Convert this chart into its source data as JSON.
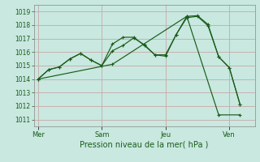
{
  "xlabel": "Pression niveau de la mer( hPa )",
  "ylim": [
    1010.5,
    1019.5
  ],
  "yticks": [
    1011,
    1012,
    1013,
    1014,
    1015,
    1016,
    1017,
    1018,
    1019
  ],
  "bg_color": "#c8e8e0",
  "grid_color": "#c8a8a8",
  "line_color": "#1a5c1a",
  "xtick_labels": [
    "Mer",
    "Sam",
    "Jeu",
    "Ven"
  ],
  "xtick_positions": [
    0,
    3,
    6,
    9
  ],
  "xlim": [
    -0.2,
    10.2
  ],
  "series1_x": [
    0,
    0.5,
    1.0,
    1.5,
    2.0,
    2.5,
    3.0,
    3.5,
    4.0,
    4.5,
    5.0,
    5.5,
    6.0,
    6.5,
    7.0,
    7.5,
    8.0,
    8.5,
    9.0,
    9.5
  ],
  "series1_y": [
    1014.0,
    1014.7,
    1014.9,
    1015.5,
    1015.9,
    1015.4,
    1015.0,
    1016.1,
    1016.5,
    1017.05,
    1016.55,
    1015.8,
    1015.8,
    1017.3,
    1018.55,
    1018.65,
    1017.95,
    1015.65,
    1014.85,
    1012.15
  ],
  "series2_x": [
    0,
    0.5,
    1.0,
    1.5,
    2.0,
    2.5,
    3.0,
    3.5,
    4.0,
    4.5,
    5.0,
    5.5,
    6.0,
    6.5,
    7.0,
    7.5,
    8.0,
    8.5,
    9.0,
    9.5
  ],
  "series2_y": [
    1014.0,
    1014.7,
    1014.9,
    1015.5,
    1015.9,
    1015.4,
    1015.0,
    1016.6,
    1017.1,
    1017.1,
    1016.5,
    1015.8,
    1015.7,
    1017.3,
    1018.65,
    1018.7,
    1018.05,
    1015.65,
    1014.85,
    1012.15
  ],
  "series3_x": [
    0,
    3.5,
    7.0,
    8.5,
    9.5
  ],
  "series3_y": [
    1014.0,
    1015.1,
    1018.65,
    1011.35,
    1011.35
  ]
}
